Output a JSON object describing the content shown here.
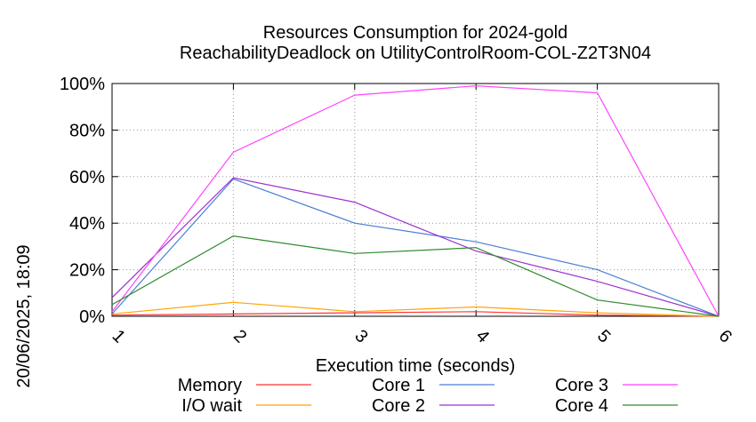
{
  "chart_data": {
    "type": "line",
    "title_line1": "Resources Consumption for 2024-gold",
    "title_line2": "ReachabilityDeadlock on UtilityControlRoom-COL-Z2T3N04",
    "xlabel": "Execution time (seconds)",
    "side_label": "20/06/2025, 18:09",
    "x": [
      1,
      2,
      3,
      4,
      5,
      6
    ],
    "x_tick_labels": [
      "1",
      "2",
      "3",
      "4",
      "5",
      "6"
    ],
    "y_tick_labels": [
      "0%",
      "20%",
      "40%",
      "60%",
      "80%",
      "100%"
    ],
    "y_ticks": [
      0,
      20,
      40,
      60,
      80,
      100
    ],
    "xlim": [
      1,
      6
    ],
    "ylim": [
      0,
      100
    ],
    "grid": true,
    "legend_position": "bottom",
    "series": [
      {
        "name": "Memory",
        "color": "#ff3333",
        "values": [
          0.5,
          1.0,
          1.5,
          2.0,
          0.5,
          0
        ]
      },
      {
        "name": "I/O wait",
        "color": "#ffa500",
        "values": [
          1.0,
          6.0,
          2.0,
          4.0,
          1.5,
          0
        ]
      },
      {
        "name": "Core 1",
        "color": "#4a7fd4",
        "values": [
          1.0,
          59.0,
          40.0,
          32.0,
          20.0,
          0
        ]
      },
      {
        "name": "Core 2",
        "color": "#9b30d0",
        "values": [
          8.0,
          59.5,
          49.0,
          28.0,
          15.0,
          0
        ]
      },
      {
        "name": "Core 3",
        "color": "#ff44ff",
        "values": [
          2.0,
          70.5,
          95.0,
          99.0,
          96.0,
          0
        ]
      },
      {
        "name": "Core 4",
        "color": "#2e8b2e",
        "values": [
          5.0,
          34.5,
          27.0,
          29.5,
          7.0,
          0
        ]
      }
    ]
  }
}
